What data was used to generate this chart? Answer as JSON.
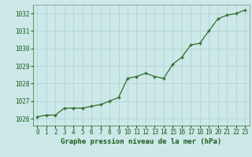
{
  "x": [
    0,
    1,
    2,
    3,
    4,
    5,
    6,
    7,
    8,
    9,
    10,
    11,
    12,
    13,
    14,
    15,
    16,
    17,
    18,
    19,
    20,
    21,
    22,
    23
  ],
  "y": [
    1026.1,
    1026.2,
    1026.2,
    1026.6,
    1026.6,
    1026.6,
    1026.7,
    1026.8,
    1027.0,
    1027.2,
    1028.3,
    1028.4,
    1028.6,
    1028.4,
    1028.3,
    1029.1,
    1029.5,
    1030.2,
    1030.3,
    1031.0,
    1031.7,
    1031.9,
    1032.0,
    1032.2
  ],
  "line_color": "#2d6e2d",
  "marker_color": "#2d6e2d",
  "bg_color": "#cce8e8",
  "grid_color": "#b0d0d0",
  "xlabel": "Graphe pression niveau de la mer (hPa)",
  "xlabel_color": "#1a5c1a",
  "tick_color": "#1a5c1a",
  "ylim": [
    1025.6,
    1032.5
  ],
  "yticks": [
    1026,
    1027,
    1028,
    1029,
    1030,
    1031,
    1032
  ],
  "xtick_labels": [
    "0",
    "1",
    "2",
    "3",
    "4",
    "5",
    "6",
    "7",
    "8",
    "9",
    "10",
    "11",
    "12",
    "13",
    "14",
    "15",
    "16",
    "17",
    "18",
    "19",
    "20",
    "21",
    "22",
    "23"
  ],
  "title_fontsize": 6.5,
  "tick_fontsize": 5.5
}
